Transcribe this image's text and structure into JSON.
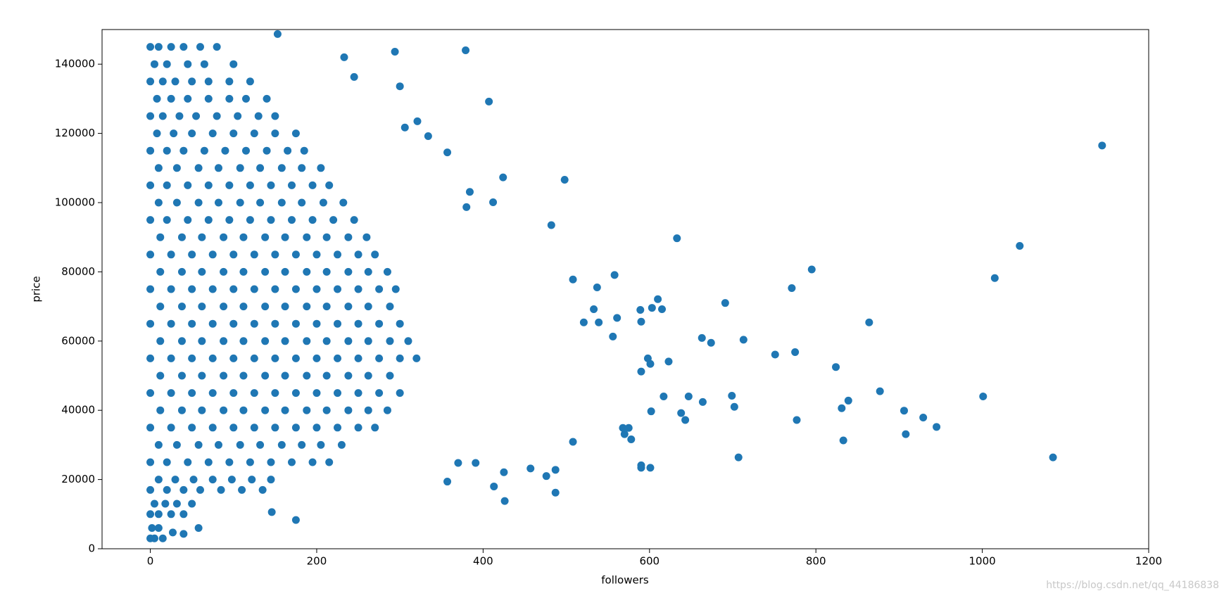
{
  "chart_data": {
    "type": "scatter",
    "x_label": "followers",
    "y_label": "price",
    "color": "#1f77b4",
    "watermark": "https://blog.csdn.net/qq_44186838",
    "xlim": [
      -58,
      1200
    ],
    "ylim": [
      0,
      150000
    ],
    "xticks": [
      0,
      200,
      400,
      600,
      800,
      1000,
      1200
    ],
    "yticks": [
      0,
      20000,
      40000,
      60000,
      80000,
      100000,
      120000,
      140000
    ],
    "x": [
      0,
      10,
      25,
      40,
      60,
      80,
      0,
      15,
      30,
      50,
      70,
      95,
      120,
      0,
      15,
      35,
      55,
      80,
      105,
      130,
      150,
      0,
      20,
      40,
      65,
      90,
      115,
      140,
      165,
      185,
      0,
      20,
      45,
      70,
      95,
      120,
      145,
      170,
      195,
      215,
      0,
      20,
      45,
      70,
      95,
      120,
      145,
      170,
      195,
      220,
      245,
      0,
      25,
      50,
      75,
      100,
      125,
      150,
      175,
      200,
      225,
      250,
      270,
      0,
      25,
      50,
      75,
      100,
      125,
      150,
      175,
      200,
      225,
      250,
      275,
      295,
      0,
      25,
      50,
      75,
      100,
      125,
      150,
      175,
      200,
      225,
      250,
      275,
      300,
      0,
      25,
      50,
      75,
      100,
      125,
      150,
      175,
      200,
      225,
      250,
      275,
      300,
      320,
      0,
      25,
      50,
      75,
      100,
      125,
      150,
      175,
      200,
      225,
      250,
      275,
      300,
      0,
      25,
      50,
      75,
      100,
      125,
      150,
      175,
      200,
      225,
      250,
      270,
      0,
      20,
      45,
      70,
      95,
      120,
      145,
      170,
      195,
      215,
      0,
      20,
      40,
      60,
      85,
      110,
      135,
      0,
      10,
      25,
      40,
      0,
      5,
      15,
      5,
      20,
      45,
      65,
      100,
      8,
      25,
      45,
      70,
      95,
      115,
      140,
      8,
      28,
      50,
      75,
      100,
      125,
      150,
      175,
      10,
      32,
      58,
      82,
      108,
      132,
      158,
      182,
      205,
      10,
      32,
      58,
      82,
      108,
      132,
      158,
      182,
      208,
      232,
      12,
      38,
      62,
      88,
      112,
      138,
      162,
      188,
      212,
      238,
      260,
      12,
      38,
      62,
      88,
      112,
      138,
      162,
      188,
      212,
      238,
      262,
      285,
      12,
      38,
      62,
      88,
      112,
      138,
      162,
      188,
      212,
      238,
      262,
      288,
      12,
      38,
      62,
      88,
      112,
      138,
      162,
      188,
      212,
      238,
      262,
      288,
      310,
      12,
      38,
      62,
      88,
      112,
      138,
      162,
      188,
      212,
      238,
      262,
      288,
      12,
      38,
      62,
      88,
      112,
      138,
      162,
      188,
      212,
      238,
      262,
      285,
      10,
      32,
      58,
      82,
      108,
      132,
      158,
      182,
      205,
      230,
      10,
      30,
      52,
      75,
      98,
      122,
      145,
      5,
      18,
      32,
      50,
      2,
      10,
      1144,
      1045,
      1015,
      1001,
      1085,
      945,
      929,
      908,
      906,
      877,
      864,
      839,
      831,
      833,
      824,
      795,
      771,
      775,
      777,
      751,
      707,
      713,
      702,
      699,
      691,
      674,
      663,
      664,
      647,
      643,
      638,
      633,
      623,
      617,
      610,
      615,
      603,
      601,
      590,
      590,
      589,
      598,
      601,
      602,
      590,
      578,
      570,
      568,
      575,
      558,
      561,
      556,
      498,
      482,
      508,
      537,
      533,
      539,
      521,
      508,
      487,
      487,
      476,
      426,
      424,
      412,
      407,
      379,
      357,
      294,
      233,
      153,
      245,
      300,
      384,
      380,
      321,
      306,
      334,
      146,
      175,
      58,
      27,
      40,
      357,
      370,
      391,
      413,
      425,
      457,
      590
    ],
    "values": [
      145000,
      145000,
      145000,
      145000,
      145000,
      145000,
      135000,
      135000,
      135000,
      135000,
      135000,
      135000,
      135000,
      125000,
      125000,
      125000,
      125000,
      125000,
      125000,
      125000,
      125000,
      115000,
      115000,
      115000,
      115000,
      115000,
      115000,
      115000,
      115000,
      115000,
      105000,
      105000,
      105000,
      105000,
      105000,
      105000,
      105000,
      105000,
      105000,
      105000,
      95000,
      95000,
      95000,
      95000,
      95000,
      95000,
      95000,
      95000,
      95000,
      95000,
      95000,
      85000,
      85000,
      85000,
      85000,
      85000,
      85000,
      85000,
      85000,
      85000,
      85000,
      85000,
      85000,
      75000,
      75000,
      75000,
      75000,
      75000,
      75000,
      75000,
      75000,
      75000,
      75000,
      75000,
      75000,
      75000,
      65000,
      65000,
      65000,
      65000,
      65000,
      65000,
      65000,
      65000,
      65000,
      65000,
      65000,
      65000,
      65000,
      55000,
      55000,
      55000,
      55000,
      55000,
      55000,
      55000,
      55000,
      55000,
      55000,
      55000,
      55000,
      55000,
      55000,
      45000,
      45000,
      45000,
      45000,
      45000,
      45000,
      45000,
      45000,
      45000,
      45000,
      45000,
      45000,
      45000,
      35000,
      35000,
      35000,
      35000,
      35000,
      35000,
      35000,
      35000,
      35000,
      35000,
      35000,
      35000,
      25000,
      25000,
      25000,
      25000,
      25000,
      25000,
      25000,
      25000,
      25000,
      25000,
      17000,
      17000,
      17000,
      17000,
      17000,
      17000,
      17000,
      10000,
      10000,
      10000,
      10000,
      3000,
      3000,
      3000,
      140000,
      140000,
      140000,
      140000,
      140000,
      130000,
      130000,
      130000,
      130000,
      130000,
      130000,
      130000,
      120000,
      120000,
      120000,
      120000,
      120000,
      120000,
      120000,
      120000,
      110000,
      110000,
      110000,
      110000,
      110000,
      110000,
      110000,
      110000,
      110000,
      100000,
      100000,
      100000,
      100000,
      100000,
      100000,
      100000,
      100000,
      100000,
      100000,
      90000,
      90000,
      90000,
      90000,
      90000,
      90000,
      90000,
      90000,
      90000,
      90000,
      90000,
      80000,
      80000,
      80000,
      80000,
      80000,
      80000,
      80000,
      80000,
      80000,
      80000,
      80000,
      80000,
      70000,
      70000,
      70000,
      70000,
      70000,
      70000,
      70000,
      70000,
      70000,
      70000,
      70000,
      70000,
      60000,
      60000,
      60000,
      60000,
      60000,
      60000,
      60000,
      60000,
      60000,
      60000,
      60000,
      60000,
      60000,
      50000,
      50000,
      50000,
      50000,
      50000,
      50000,
      50000,
      50000,
      50000,
      50000,
      50000,
      50000,
      40000,
      40000,
      40000,
      40000,
      40000,
      40000,
      40000,
      40000,
      40000,
      40000,
      40000,
      40000,
      30000,
      30000,
      30000,
      30000,
      30000,
      30000,
      30000,
      30000,
      30000,
      30000,
      20000,
      20000,
      20000,
      20000,
      20000,
      20000,
      20000,
      13000,
      13000,
      13000,
      13000,
      6000,
      6000,
      116500,
      87500,
      78200,
      44000,
      26400,
      35200,
      37900,
      33100,
      39900,
      45500,
      65400,
      42800,
      40600,
      31300,
      52500,
      80700,
      75300,
      56800,
      37200,
      56100,
      26400,
      60400,
      41000,
      44200,
      71000,
      59500,
      60900,
      42400,
      44000,
      37200,
      39200,
      89700,
      54100,
      44000,
      72100,
      69200,
      69600,
      23400,
      23400,
      65600,
      69000,
      55000,
      53400,
      39700,
      51200,
      31600,
      33100,
      34900,
      34900,
      79100,
      66700,
      61300,
      106600,
      93500,
      77800,
      75500,
      69200,
      65400,
      65400,
      30900,
      16200,
      22800,
      21000,
      13800,
      107300,
      100100,
      129200,
      144000,
      114500,
      143600,
      142000,
      148700,
      136300,
      133600,
      103100,
      98700,
      123500,
      121700,
      119200,
      10600,
      8300,
      6000,
      4700,
      4300,
      19400,
      24800,
      24800,
      18000,
      22100,
      23200,
      24100
    ]
  }
}
